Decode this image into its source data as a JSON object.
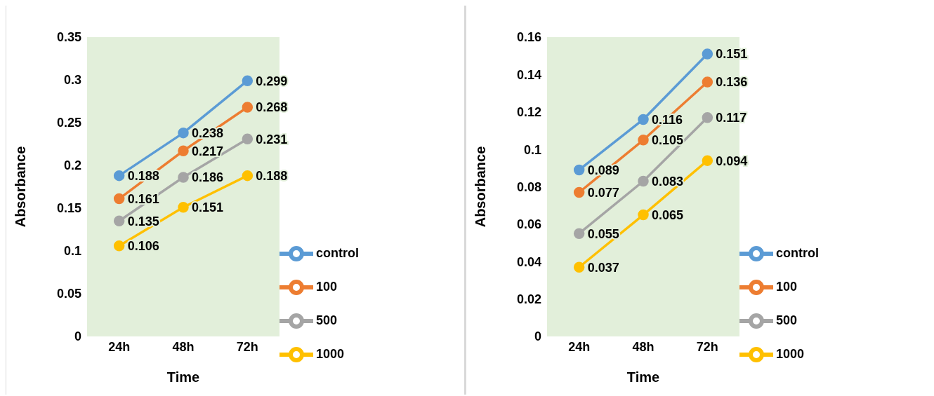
{
  "chart_data": [
    {
      "type": "line",
      "xlabel": "Time",
      "ylabel": "Absorbance",
      "categories": [
        "24h",
        "48h",
        "72h"
      ],
      "ylim": [
        0,
        0.35
      ],
      "yticks": [
        0,
        0.05,
        0.1,
        0.15,
        0.2,
        0.25,
        0.3,
        0.35
      ],
      "grid": false,
      "legend": "bottom right",
      "marker": "circle",
      "line_style": "solid",
      "data_labels": true,
      "series": [
        {
          "name": "control",
          "color": "#5b9bd5",
          "values": [
            0.188,
            0.238,
            0.299
          ]
        },
        {
          "name": "100",
          "color": "#ed7d31",
          "values": [
            0.161,
            0.217,
            0.268
          ]
        },
        {
          "name": "500",
          "color": "#a5a5a5",
          "values": [
            0.135,
            0.186,
            0.231
          ]
        },
        {
          "name": "1000",
          "color": "#ffc000",
          "values": [
            0.106,
            0.151,
            0.188
          ]
        }
      ]
    },
    {
      "type": "line",
      "xlabel": "Time",
      "ylabel": "Absorbance",
      "categories": [
        "24h",
        "48h",
        "72h"
      ],
      "ylim": [
        0,
        0.16
      ],
      "yticks": [
        0,
        0.02,
        0.04,
        0.06,
        0.08,
        0.1,
        0.12,
        0.14,
        0.16
      ],
      "grid": false,
      "legend": "bottom right",
      "marker": "circle",
      "line_style": "solid",
      "data_labels": true,
      "series": [
        {
          "name": "control",
          "color": "#5b9bd5",
          "values": [
            0.089,
            0.116,
            0.151
          ]
        },
        {
          "name": "100",
          "color": "#ed7d31",
          "values": [
            0.077,
            0.105,
            0.136
          ]
        },
        {
          "name": "500",
          "color": "#a5a5a5",
          "values": [
            0.055,
            0.083,
            0.117
          ]
        },
        {
          "name": "1000",
          "color": "#ffc000",
          "values": [
            0.037,
            0.065,
            0.094
          ]
        }
      ]
    }
  ]
}
